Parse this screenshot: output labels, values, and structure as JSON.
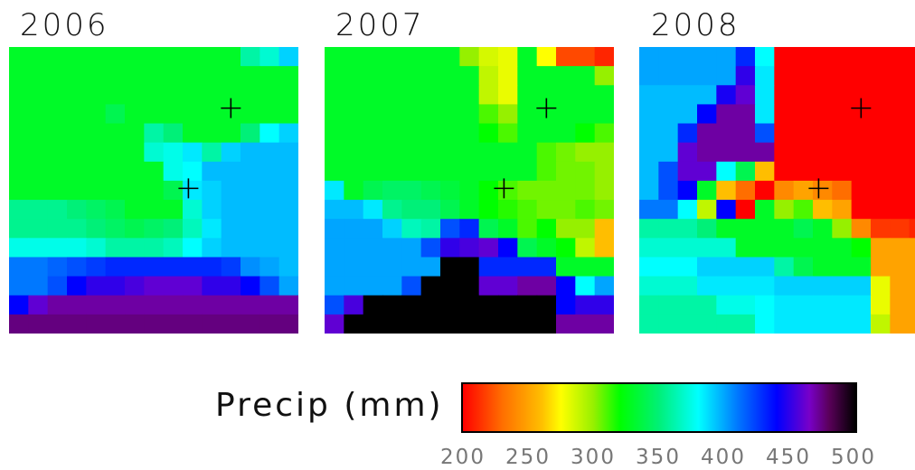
{
  "colorbar": {
    "label": "Precip (mm)",
    "ticks": [
      "200",
      "250",
      "300",
      "350",
      "400",
      "450",
      "500"
    ],
    "range": [
      200,
      500
    ],
    "scale": "rainbow: red-orange-yellow-green-cyan-blue-purple-black"
  },
  "chart_data": [
    {
      "type": "heatmap",
      "title": "2006",
      "units": "mm",
      "grid": [
        [
          330,
          330,
          330,
          330,
          330,
          330,
          330,
          330,
          330,
          330,
          330,
          330,
          360,
          370,
          390
        ],
        [
          330,
          330,
          330,
          330,
          330,
          330,
          330,
          330,
          330,
          330,
          330,
          330,
          330,
          330,
          330
        ],
        [
          330,
          330,
          330,
          330,
          330,
          330,
          330,
          330,
          330,
          330,
          330,
          330,
          330,
          330,
          330
        ],
        [
          330,
          330,
          330,
          330,
          330,
          340,
          330,
          330,
          330,
          330,
          330,
          330,
          330,
          330,
          330
        ],
        [
          330,
          330,
          330,
          330,
          330,
          330,
          330,
          360,
          350,
          330,
          330,
          330,
          350,
          380,
          390
        ],
        [
          330,
          330,
          330,
          330,
          330,
          330,
          330,
          370,
          375,
          385,
          360,
          390,
          395,
          395,
          395
        ],
        [
          330,
          330,
          330,
          330,
          330,
          330,
          330,
          330,
          375,
          380,
          395,
          395,
          395,
          395,
          395
        ],
        [
          330,
          330,
          330,
          330,
          330,
          330,
          330,
          330,
          340,
          385,
          390,
          395,
          395,
          395,
          395
        ],
        [
          355,
          355,
          355,
          350,
          345,
          340,
          330,
          330,
          330,
          370,
          390,
          395,
          395,
          395,
          395
        ],
        [
          355,
          355,
          355,
          355,
          350,
          345,
          340,
          345,
          350,
          365,
          385,
          395,
          395,
          395,
          395
        ],
        [
          375,
          375,
          375,
          375,
          370,
          360,
          360,
          360,
          365,
          380,
          390,
          395,
          395,
          395,
          395
        ],
        [
          410,
          410,
          415,
          420,
          425,
          430,
          430,
          430,
          430,
          430,
          430,
          425,
          405,
          400,
          395
        ],
        [
          410,
          410,
          420,
          440,
          450,
          450,
          455,
          460,
          460,
          460,
          450,
          450,
          440,
          420,
          400
        ],
        [
          440,
          460,
          470,
          470,
          470,
          470,
          470,
          470,
          470,
          470,
          470,
          470,
          470,
          470,
          470
        ],
        [
          475,
          475,
          475,
          475,
          475,
          475,
          475,
          475,
          475,
          475,
          475,
          475,
          475,
          475,
          475
        ]
      ],
      "markers": [
        [
          11.5,
          3.2
        ],
        [
          9.3,
          7.4
        ]
      ]
    },
    {
      "type": "heatmap",
      "title": "2007",
      "units": "mm",
      "grid": [
        [
          330,
          330,
          330,
          330,
          330,
          330,
          330,
          300,
          285,
          280,
          330,
          275,
          220,
          220,
          210
        ],
        [
          330,
          330,
          330,
          330,
          330,
          330,
          330,
          330,
          290,
          280,
          330,
          330,
          330,
          330,
          300
        ],
        [
          330,
          330,
          330,
          330,
          330,
          330,
          330,
          330,
          290,
          280,
          330,
          330,
          330,
          330,
          330
        ],
        [
          330,
          330,
          330,
          330,
          330,
          330,
          330,
          330,
          310,
          300,
          330,
          330,
          330,
          330,
          330
        ],
        [
          330,
          330,
          330,
          330,
          330,
          330,
          330,
          330,
          320,
          310,
          330,
          330,
          330,
          320,
          310
        ],
        [
          330,
          330,
          330,
          330,
          330,
          330,
          330,
          330,
          330,
          330,
          330,
          310,
          305,
          300,
          300
        ],
        [
          330,
          330,
          330,
          330,
          330,
          330,
          330,
          330,
          330,
          330,
          330,
          310,
          305,
          305,
          300
        ],
        [
          385,
          330,
          340,
          345,
          345,
          340,
          335,
          330,
          320,
          310,
          305,
          305,
          305,
          305,
          300
        ],
        [
          395,
          395,
          385,
          355,
          350,
          350,
          340,
          330,
          320,
          315,
          310,
          305,
          305,
          310,
          305
        ],
        [
          400,
          400,
          400,
          390,
          365,
          360,
          420,
          430,
          340,
          330,
          310,
          320,
          300,
          300,
          260
        ],
        [
          400,
          400,
          400,
          400,
          400,
          420,
          450,
          455,
          460,
          440,
          340,
          330,
          320,
          290,
          260
        ],
        [
          400,
          400,
          400,
          400,
          400,
          400,
          500,
          500,
          430,
          430,
          430,
          430,
          330,
          330,
          330
        ],
        [
          400,
          400,
          400,
          400,
          420,
          500,
          500,
          500,
          460,
          460,
          470,
          470,
          440,
          380,
          400
        ],
        [
          420,
          455,
          500,
          500,
          500,
          500,
          500,
          500,
          500,
          500,
          500,
          500,
          440,
          450,
          450
        ],
        [
          460,
          500,
          500,
          500,
          500,
          500,
          500,
          500,
          500,
          500,
          500,
          500,
          470,
          470,
          470
        ]
      ],
      "markers": [
        [
          11.5,
          3.2
        ],
        [
          9.3,
          7.4
        ]
      ]
    },
    {
      "type": "heatmap",
      "title": "2008",
      "units": "mm",
      "grid": [
        [
          400,
          400,
          400,
          400,
          400,
          430,
          380,
          200,
          200,
          200,
          200,
          200,
          200,
          200,
          200
        ],
        [
          400,
          400,
          400,
          400,
          400,
          450,
          385,
          200,
          200,
          200,
          200,
          200,
          200,
          200,
          200
        ],
        [
          395,
          395,
          395,
          395,
          445,
          460,
          385,
          200,
          200,
          200,
          200,
          200,
          200,
          200,
          200
        ],
        [
          395,
          395,
          395,
          440,
          470,
          470,
          385,
          200,
          200,
          200,
          200,
          200,
          200,
          200,
          200
        ],
        [
          395,
          395,
          430,
          470,
          470,
          470,
          420,
          200,
          200,
          200,
          200,
          200,
          200,
          200,
          200
        ],
        [
          395,
          395,
          460,
          470,
          470,
          470,
          470,
          200,
          200,
          200,
          200,
          200,
          200,
          200,
          200
        ],
        [
          395,
          420,
          460,
          460,
          380,
          340,
          260,
          200,
          200,
          200,
          200,
          200,
          200,
          200,
          200
        ],
        [
          395,
          420,
          440,
          330,
          260,
          230,
          200,
          240,
          250,
          240,
          230,
          200,
          200,
          200,
          200
        ],
        [
          410,
          410,
          380,
          290,
          440,
          200,
          330,
          300,
          310,
          260,
          250,
          200,
          200,
          200,
          200
        ],
        [
          360,
          360,
          360,
          350,
          330,
          330,
          330,
          330,
          340,
          330,
          300,
          240,
          215,
          215,
          210
        ],
        [
          370,
          370,
          370,
          370,
          370,
          330,
          330,
          330,
          330,
          330,
          330,
          320,
          250,
          250,
          250
        ],
        [
          380,
          380,
          380,
          390,
          390,
          390,
          390,
          360,
          340,
          330,
          330,
          330,
          250,
          250,
          250
        ],
        [
          370,
          370,
          370,
          385,
          385,
          385,
          385,
          390,
          390,
          390,
          390,
          390,
          280,
          250,
          250
        ],
        [
          360,
          360,
          360,
          360,
          375,
          375,
          380,
          385,
          385,
          385,
          385,
          385,
          280,
          250,
          250
        ],
        [
          360,
          360,
          360,
          360,
          360,
          360,
          380,
          385,
          385,
          385,
          385,
          385,
          290,
          250,
          250
        ]
      ],
      "markers": [
        [
          11.5,
          3.2
        ],
        [
          9.3,
          7.4
        ]
      ]
    }
  ]
}
